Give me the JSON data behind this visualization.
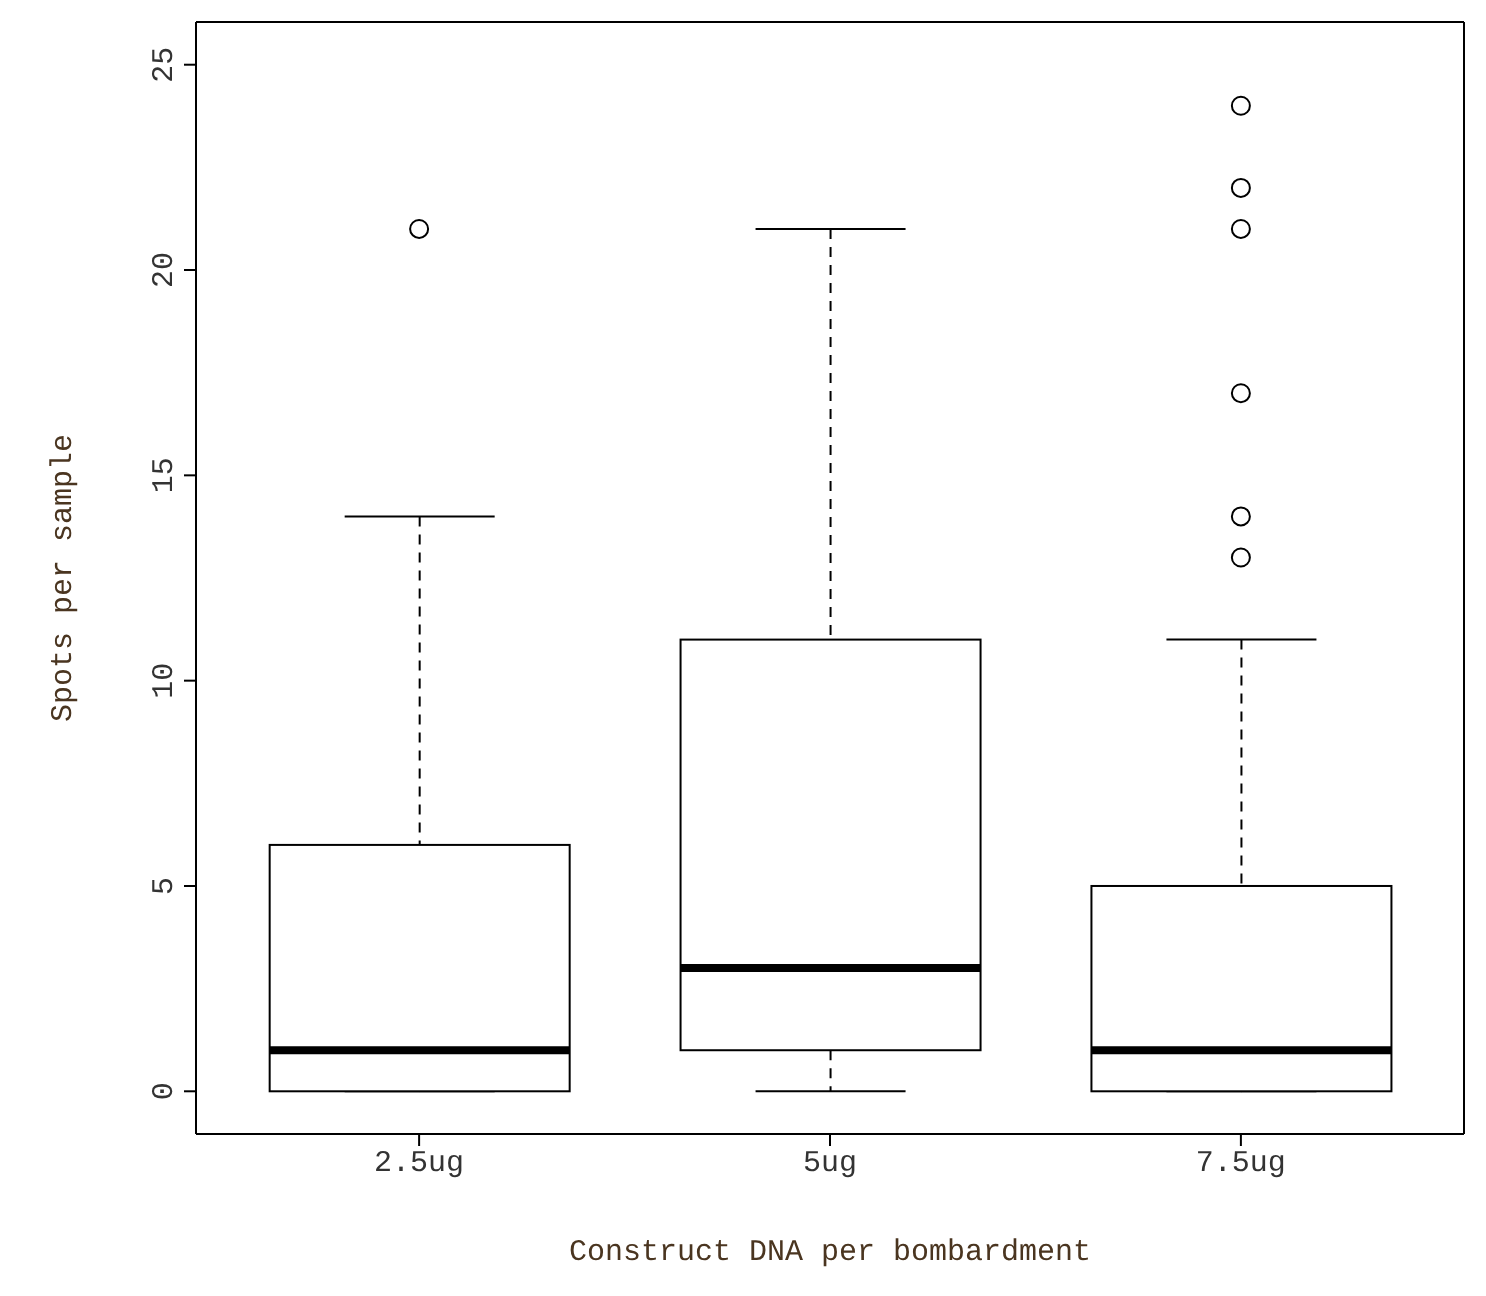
{
  "chart_data": {
    "type": "box",
    "xlabel": "Construct DNA per bombardment",
    "ylabel": "Spots per sample",
    "categories": [
      "2.5ug",
      "5ug",
      "7.5ug"
    ],
    "boxes": [
      {
        "low": 0,
        "q1": 0,
        "median": 1,
        "q3": 6,
        "high": 14,
        "outliers": [
          21
        ]
      },
      {
        "low": 0,
        "q1": 1,
        "median": 3,
        "q3": 11,
        "high": 21
      },
      {
        "low": 0,
        "q1": 0,
        "median": 1,
        "q3": 5,
        "high": 11,
        "outliers": [
          13,
          14,
          17,
          21,
          22,
          24
        ]
      }
    ],
    "ylim": [
      -1.04,
      26.04
    ],
    "yticks": [
      0,
      5,
      10,
      15,
      20,
      25
    ],
    "grid": false,
    "legend": false
  }
}
